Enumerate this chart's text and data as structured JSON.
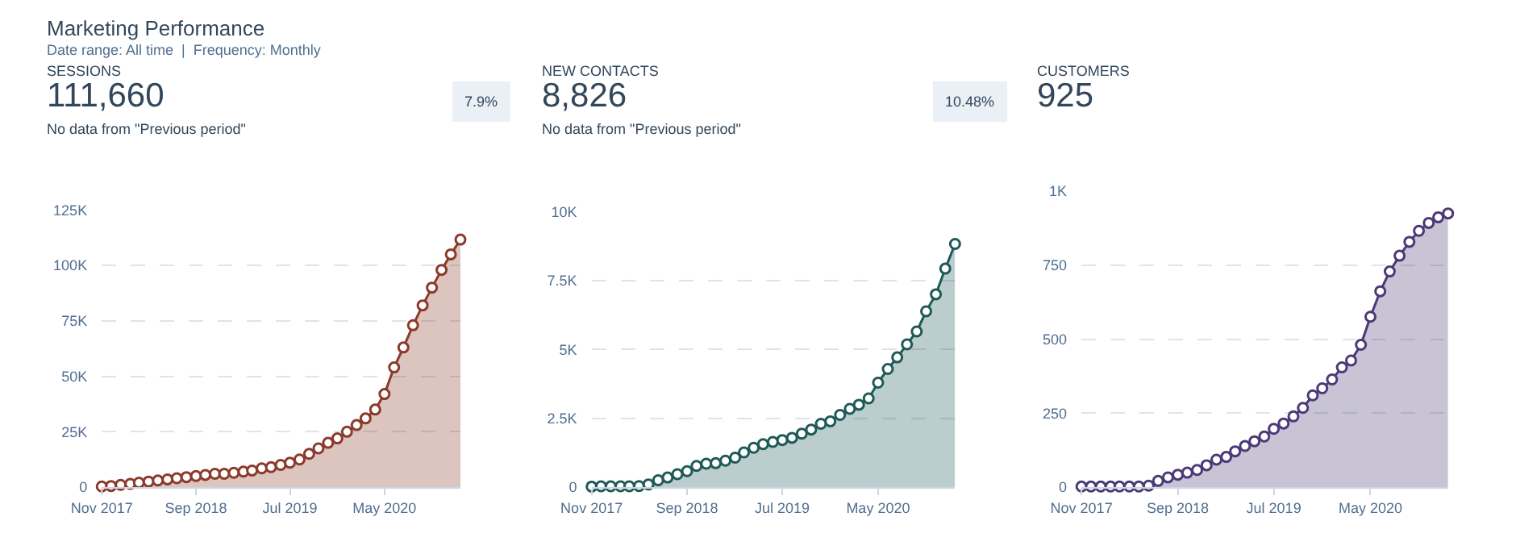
{
  "chart_data": [
    {
      "type": "area",
      "title": "SESSIONS",
      "annotations": [
        "Marketing Performance",
        "Date range: All time  |  Frequency: Monthly",
        "111,660",
        "No data from \"Previous period\"",
        "7.9%"
      ],
      "x": [
        "2017-11",
        "2017-12",
        "2018-01",
        "2018-02",
        "2018-03",
        "2018-04",
        "2018-05",
        "2018-06",
        "2018-07",
        "2018-08",
        "2018-09",
        "2018-10",
        "2018-11",
        "2018-12",
        "2019-01",
        "2019-02",
        "2019-03",
        "2019-04",
        "2019-05",
        "2019-06",
        "2019-07",
        "2019-08",
        "2019-09",
        "2019-10",
        "2019-11",
        "2019-12",
        "2020-01",
        "2020-02",
        "2020-03",
        "2020-04",
        "2020-05",
        "2020-06",
        "2020-07",
        "2020-08",
        "2020-09",
        "2020-10",
        "2020-11",
        "2020-12",
        "2021-01"
      ],
      "series": [
        {
          "color": "#8b3a2b",
          "values": [
            300,
            500,
            1000,
            1500,
            2000,
            2500,
            3000,
            3500,
            4000,
            4500,
            5000,
            5500,
            6000,
            6000,
            6500,
            7000,
            7500,
            8500,
            9000,
            10000,
            11000,
            12500,
            15000,
            17500,
            20000,
            22000,
            25000,
            28000,
            31000,
            35000,
            42000,
            54000,
            63000,
            73000,
            82000,
            90000,
            98000,
            105000,
            111660
          ]
        }
      ],
      "xlim": [
        "2017-11",
        "2021-01"
      ],
      "xticks": [
        {
          "value": "2017-11",
          "label": "Nov 2017"
        },
        {
          "value": "2018-09",
          "label": "Sep 2018"
        },
        {
          "value": "2019-07",
          "label": "Jul 2019"
        },
        {
          "value": "2020-05",
          "label": "May 2020"
        }
      ],
      "ylim": [
        0,
        125000
      ],
      "yticks": [
        0,
        {
          "value": 25000,
          "label": "25K"
        },
        {
          "value": 50000,
          "label": "50K"
        },
        {
          "value": 75000,
          "label": "75K"
        },
        {
          "value": 100000,
          "label": "100K"
        },
        {
          "value": 125000,
          "label": "125K"
        }
      ],
      "grid": "y",
      "marker": "circle"
    },
    {
      "type": "area",
      "title": "NEW CONTACTS",
      "annotations": [
        "8,826",
        "No data from \"Previous period\"",
        "10.48%"
      ],
      "x": [
        "2017-11",
        "2017-12",
        "2018-01",
        "2018-02",
        "2018-03",
        "2018-04",
        "2018-05",
        "2018-06",
        "2018-07",
        "2018-08",
        "2018-09",
        "2018-10",
        "2018-11",
        "2018-12",
        "2019-01",
        "2019-02",
        "2019-03",
        "2019-04",
        "2019-05",
        "2019-06",
        "2019-07",
        "2019-08",
        "2019-09",
        "2019-10",
        "2019-11",
        "2019-12",
        "2020-01",
        "2020-02",
        "2020-03",
        "2020-04",
        "2020-05",
        "2020-06",
        "2020-07",
        "2020-08",
        "2020-09",
        "2020-10",
        "2020-11",
        "2020-12",
        "2021-01"
      ],
      "series": [
        {
          "color": "#1f5a58",
          "values": [
            20,
            30,
            30,
            30,
            30,
            40,
            100,
            250,
            350,
            470,
            580,
            770,
            850,
            870,
            960,
            1070,
            1260,
            1430,
            1560,
            1640,
            1710,
            1790,
            1940,
            2090,
            2300,
            2390,
            2620,
            2840,
            2990,
            3220,
            3790,
            4290,
            4710,
            5180,
            5650,
            6380,
            7000,
            7930,
            8826
          ]
        }
      ],
      "xlim": [
        "2017-11",
        "2021-01"
      ],
      "xticks": [
        {
          "value": "2017-11",
          "label": "Nov 2017"
        },
        {
          "value": "2018-09",
          "label": "Sep 2018"
        },
        {
          "value": "2019-07",
          "label": "Jul 2019"
        },
        {
          "value": "2020-05",
          "label": "May 2020"
        }
      ],
      "ylim": [
        0,
        10000
      ],
      "yticks": [
        0,
        {
          "value": 2500,
          "label": "2.5K"
        },
        {
          "value": 5000,
          "label": "5K"
        },
        {
          "value": 7500,
          "label": "7.5K"
        },
        {
          "value": 10000,
          "label": "10K"
        }
      ],
      "grid": "y",
      "marker": "circle"
    },
    {
      "type": "area",
      "title": "CUSTOMERS",
      "annotations": [
        "925"
      ],
      "x": [
        "2017-11",
        "2017-12",
        "2018-01",
        "2018-02",
        "2018-03",
        "2018-04",
        "2018-05",
        "2018-06",
        "2018-07",
        "2018-08",
        "2018-09",
        "2018-10",
        "2018-11",
        "2018-12",
        "2019-01",
        "2019-02",
        "2019-03",
        "2019-04",
        "2019-05",
        "2019-06",
        "2019-07",
        "2019-08",
        "2019-09",
        "2019-10",
        "2019-11",
        "2019-12",
        "2020-01",
        "2020-02",
        "2020-03",
        "2020-04",
        "2020-05",
        "2020-06",
        "2020-07",
        "2020-08",
        "2020-09",
        "2020-10",
        "2020-11",
        "2020-12",
        "2021-01"
      ],
      "series": [
        {
          "color": "#4a3a78",
          "values": [
            2,
            2,
            2,
            2,
            2,
            2,
            2,
            5,
            21,
            33,
            42,
            49,
            58,
            74,
            93,
            102,
            121,
            139,
            155,
            171,
            197,
            215,
            239,
            268,
            310,
            334,
            364,
            405,
            428,
            481,
            576,
            662,
            729,
            782,
            829,
            866,
            893,
            912,
            925
          ]
        }
      ],
      "xlim": [
        "2017-11",
        "2021-01"
      ],
      "xticks": [
        {
          "value": "2017-11",
          "label": "Nov 2017"
        },
        {
          "value": "2018-09",
          "label": "Sep 2018"
        },
        {
          "value": "2019-07",
          "label": "Jul 2019"
        },
        {
          "value": "2020-05",
          "label": "May 2020"
        }
      ],
      "ylim": [
        0,
        1000
      ],
      "yticks": [
        0,
        250,
        500,
        750,
        {
          "value": 1000,
          "label": "1K"
        }
      ],
      "grid": "y",
      "marker": "circle"
    }
  ]
}
